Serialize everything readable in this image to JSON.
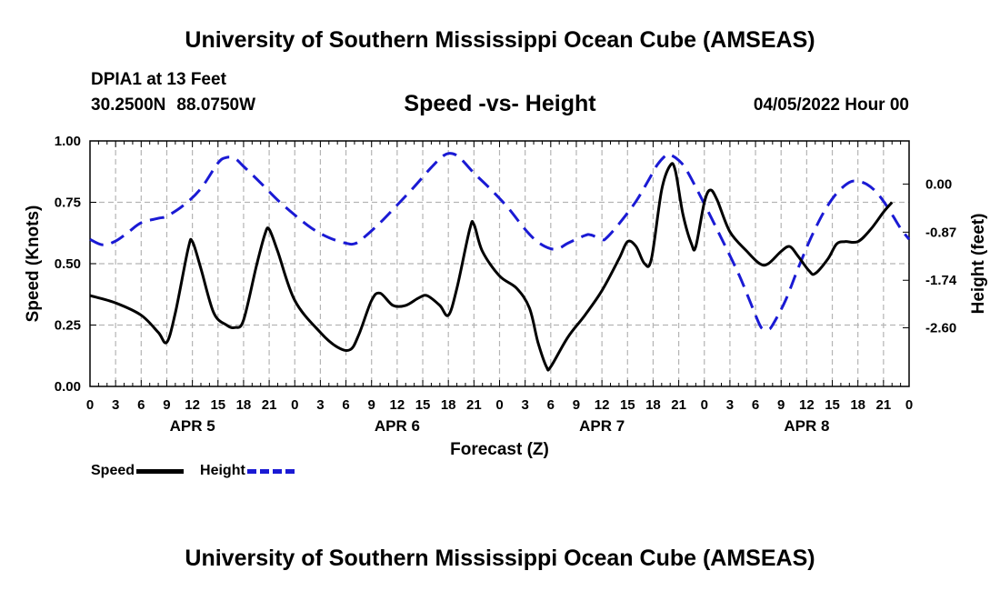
{
  "header": {
    "title": "University of Southern Mississippi Ocean Cube (AMSEAS)",
    "station": "DPIA1 at 13 Feet",
    "lat": "30.2500N",
    "lon": "88.0750W",
    "subtitle": "Speed -vs- Height",
    "datetime": "04/05/2022 Hour 00"
  },
  "footer": {
    "title": "University of Southern Mississippi Ocean Cube (AMSEAS)"
  },
  "legend": {
    "speed_label": "Speed",
    "height_label": "Height"
  },
  "colors": {
    "speed": "#000000",
    "height": "#1a1ad4",
    "grid": "#b4b4b4"
  },
  "chart_data": {
    "type": "line",
    "xlabel": "Forecast (Z)",
    "ylabel_left": "Speed (Knots)",
    "ylabel_right": "Height (feet)",
    "x_range_hours": [
      0,
      96
    ],
    "x_tick_labels": [
      "0",
      "3",
      "6",
      "9",
      "12",
      "15",
      "18",
      "21",
      "0",
      "3",
      "6",
      "9",
      "12",
      "15",
      "18",
      "21",
      "0",
      "3",
      "6",
      "9",
      "12",
      "15",
      "18",
      "21",
      "0",
      "3",
      "6",
      "9",
      "12",
      "15",
      "18",
      "21",
      "0"
    ],
    "day_labels": [
      {
        "hour": 12,
        "label": "APR 5"
      },
      {
        "hour": 36,
        "label": "APR 6"
      },
      {
        "hour": 60,
        "label": "APR 7"
      },
      {
        "hour": 84,
        "label": "APR 8"
      }
    ],
    "y_left": {
      "range": [
        0,
        1
      ],
      "ticks": [
        0,
        0.25,
        0.5,
        0.75,
        1
      ],
      "tick_labels": [
        "0.00",
        "0.25",
        "0.50",
        "0.75",
        "1.00"
      ]
    },
    "y_right": {
      "range": [
        -3.66,
        0.78
      ],
      "ticks": [
        0,
        -0.87,
        -1.74,
        -2.6
      ],
      "tick_labels": [
        "0.00",
        "-0.87",
        "-1.74",
        "-2.60"
      ]
    },
    "grid": true,
    "series": [
      {
        "name": "Speed",
        "axis": "left",
        "style": "solid",
        "points": [
          [
            0,
            0.37
          ],
          [
            3,
            0.34
          ],
          [
            6,
            0.29
          ],
          [
            8,
            0.22
          ],
          [
            9,
            0.18
          ],
          [
            10,
            0.3
          ],
          [
            11.5,
            0.56
          ],
          [
            12,
            0.59
          ],
          [
            13,
            0.48
          ],
          [
            14.5,
            0.3
          ],
          [
            16,
            0.25
          ],
          [
            17,
            0.24
          ],
          [
            18,
            0.27
          ],
          [
            19.5,
            0.49
          ],
          [
            20.5,
            0.62
          ],
          [
            21,
            0.64
          ],
          [
            22,
            0.55
          ],
          [
            24,
            0.35
          ],
          [
            27,
            0.22
          ],
          [
            29,
            0.16
          ],
          [
            30.5,
            0.15
          ],
          [
            31.5,
            0.21
          ],
          [
            33,
            0.35
          ],
          [
            34,
            0.38
          ],
          [
            35.5,
            0.33
          ],
          [
            37,
            0.33
          ],
          [
            38.5,
            0.36
          ],
          [
            39.5,
            0.37
          ],
          [
            41,
            0.33
          ],
          [
            42,
            0.29
          ],
          [
            43,
            0.4
          ],
          [
            44.5,
            0.64
          ],
          [
            45,
            0.66
          ],
          [
            46,
            0.55
          ],
          [
            48,
            0.45
          ],
          [
            50,
            0.4
          ],
          [
            51.5,
            0.32
          ],
          [
            52.5,
            0.18
          ],
          [
            53.5,
            0.08
          ],
          [
            54,
            0.08
          ],
          [
            56,
            0.2
          ],
          [
            58,
            0.29
          ],
          [
            60,
            0.39
          ],
          [
            62,
            0.52
          ],
          [
            63,
            0.59
          ],
          [
            64,
            0.57
          ],
          [
            65,
            0.5
          ],
          [
            65.8,
            0.52
          ],
          [
            67,
            0.8
          ],
          [
            68,
            0.9
          ],
          [
            68.6,
            0.88
          ],
          [
            69.5,
            0.7
          ],
          [
            70.5,
            0.58
          ],
          [
            71,
            0.57
          ],
          [
            72,
            0.75
          ],
          [
            72.7,
            0.8
          ],
          [
            73.5,
            0.76
          ],
          [
            75,
            0.63
          ],
          [
            77,
            0.55
          ],
          [
            78.5,
            0.5
          ],
          [
            79.5,
            0.5
          ],
          [
            81,
            0.55
          ],
          [
            82,
            0.57
          ],
          [
            83,
            0.53
          ],
          [
            84.3,
            0.47
          ],
          [
            85,
            0.46
          ],
          [
            86.5,
            0.52
          ],
          [
            87.5,
            0.58
          ],
          [
            88.5,
            0.59
          ],
          [
            90,
            0.59
          ],
          [
            91.5,
            0.64
          ],
          [
            93,
            0.71
          ],
          [
            94,
            0.75
          ]
        ]
      },
      {
        "name": "Height",
        "axis": "right",
        "style": "dashed",
        "points": [
          [
            0,
            -1.0
          ],
          [
            1.5,
            -1.1
          ],
          [
            3,
            -1.03
          ],
          [
            4.5,
            -0.87
          ],
          [
            6,
            -0.7
          ],
          [
            8,
            -0.62
          ],
          [
            9,
            -0.58
          ],
          [
            11,
            -0.38
          ],
          [
            13,
            -0.08
          ],
          [
            15,
            0.38
          ],
          [
            16,
            0.48
          ],
          [
            17,
            0.46
          ],
          [
            18,
            0.32
          ],
          [
            20,
            0.02
          ],
          [
            22,
            -0.29
          ],
          [
            24,
            -0.56
          ],
          [
            26,
            -0.8
          ],
          [
            28,
            -0.97
          ],
          [
            30,
            -1.07
          ],
          [
            31,
            -1.08
          ],
          [
            32,
            -0.98
          ],
          [
            34,
            -0.7
          ],
          [
            36,
            -0.38
          ],
          [
            38,
            -0.05
          ],
          [
            40,
            0.3
          ],
          [
            41.5,
            0.52
          ],
          [
            42.5,
            0.55
          ],
          [
            43.5,
            0.45
          ],
          [
            45,
            0.2
          ],
          [
            47,
            -0.1
          ],
          [
            49,
            -0.43
          ],
          [
            51,
            -0.82
          ],
          [
            52.5,
            -1.05
          ],
          [
            54,
            -1.17
          ],
          [
            55,
            -1.16
          ],
          [
            56,
            -1.07
          ],
          [
            58,
            -0.93
          ],
          [
            58.7,
            -0.92
          ],
          [
            60,
            -1.0
          ],
          [
            60.5,
            -0.98
          ],
          [
            62,
            -0.72
          ],
          [
            64,
            -0.31
          ],
          [
            65.5,
            0.08
          ],
          [
            66.5,
            0.35
          ],
          [
            67.5,
            0.52
          ],
          [
            68,
            0.53
          ],
          [
            69,
            0.43
          ],
          [
            70,
            0.23
          ],
          [
            72,
            -0.36
          ],
          [
            74,
            -0.98
          ],
          [
            76,
            -1.62
          ],
          [
            77.5,
            -2.18
          ],
          [
            78.5,
            -2.55
          ],
          [
            79,
            -2.63
          ],
          [
            79.5,
            -2.63
          ],
          [
            80,
            -2.55
          ],
          [
            81.5,
            -2.11
          ],
          [
            83,
            -1.52
          ],
          [
            84.5,
            -0.97
          ],
          [
            86,
            -0.51
          ],
          [
            87.5,
            -0.17
          ],
          [
            89,
            0.03
          ],
          [
            90,
            0.05
          ],
          [
            91,
            0.0
          ],
          [
            92,
            -0.12
          ],
          [
            93,
            -0.31
          ],
          [
            94,
            -0.55
          ],
          [
            95,
            -0.8
          ],
          [
            96,
            -1.0
          ]
        ]
      }
    ]
  }
}
